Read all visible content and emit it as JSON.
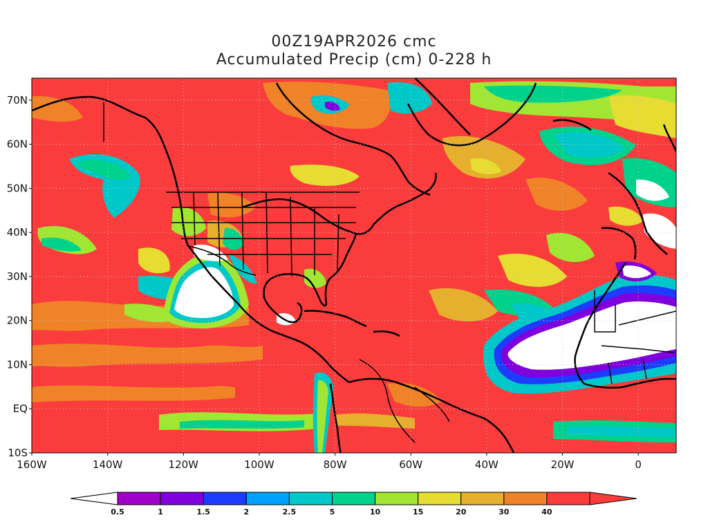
{
  "title": {
    "line1": "00Z19APR2026 cmc",
    "line2": "Accumulated Precip (cm) 0-228 h"
  },
  "map": {
    "lat_labels": [
      "70N",
      "60N",
      "50N",
      "40N",
      "30N",
      "20N",
      "10N",
      "EQ",
      "10S"
    ],
    "lat_values": [
      70,
      60,
      50,
      40,
      30,
      20,
      10,
      0,
      -10
    ],
    "lon_labels": [
      "160W",
      "140W",
      "120W",
      "100W",
      "80W",
      "60W",
      "40W",
      "20W",
      "0"
    ],
    "lon_values": [
      -160,
      -140,
      -120,
      -100,
      -80,
      -60,
      -40,
      -20,
      0
    ],
    "extent": {
      "lon_min": -160,
      "lon_max": 10,
      "lat_min": -10,
      "lat_max": 75
    }
  },
  "colorbar": {
    "labels": [
      "0.5",
      "1",
      "1.5",
      "2",
      "2.5",
      "5",
      "10",
      "15",
      "20",
      "30",
      "40"
    ],
    "colors": [
      "#a000c8",
      "#7f00dc",
      "#1e3cff",
      "#00a0ff",
      "#00c8c8",
      "#00d28c",
      "#a0e632",
      "#e6dc32",
      "#e6af2d",
      "#f08228",
      "#fa3c3c"
    ],
    "low_color": "#ffffff",
    "high_color": "#fa3c3c"
  },
  "colors": {
    "background": "#ffffff",
    "dry": "#ffffff",
    "heavy": "#fa3c3c",
    "coast": "#000000",
    "grid": "#c8c8c8"
  }
}
